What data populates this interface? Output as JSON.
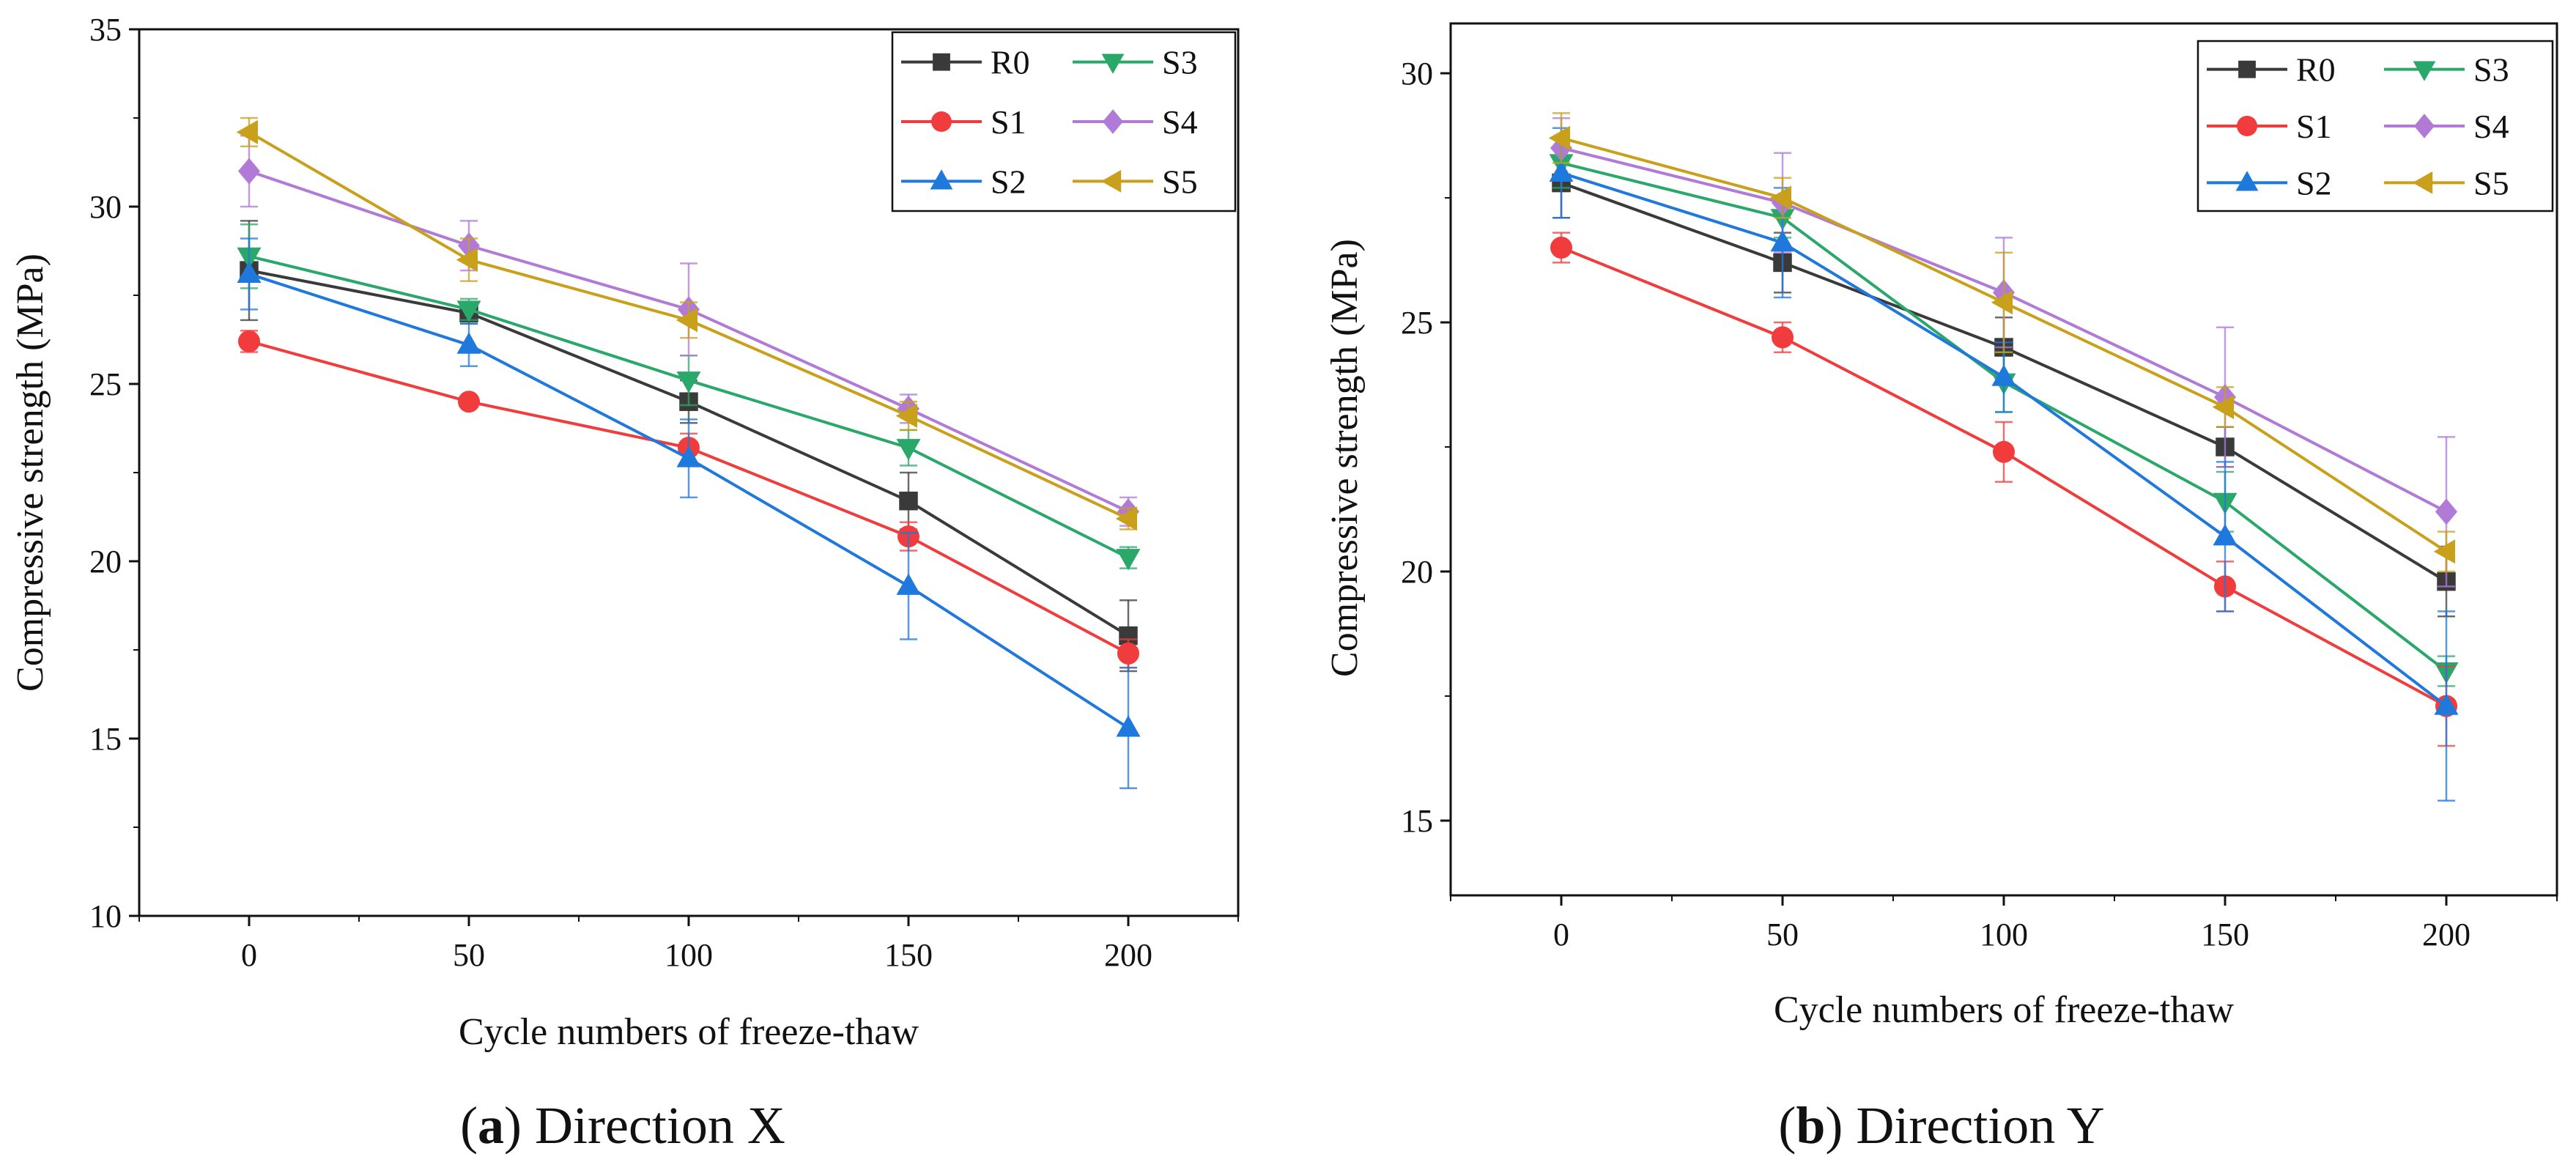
{
  "colors": {
    "R0": "#3a3a3a",
    "S1": "#f03c3c",
    "S2": "#1f78dc",
    "S3": "#2aa86a",
    "S4": "#b07ad6",
    "S5": "#c9a01c"
  },
  "chart_data": [
    {
      "type": "line",
      "panel": "a",
      "caption_letter": "a",
      "caption_text": "Direction X",
      "xlabel": "Cycle numbers of freeze-thaw",
      "ylabel": "Compressive strength (MPa)",
      "x": [
        0,
        50,
        100,
        150,
        200
      ],
      "x_ticks": [
        "0",
        "50",
        "100",
        "150",
        "200"
      ],
      "xlim": [
        -25,
        225
      ],
      "ylim": [
        10,
        35
      ],
      "y_ticks": [
        "10",
        "15",
        "20",
        "25",
        "30",
        "35"
      ],
      "legend_position": "top-right",
      "series": [
        {
          "name": "R0",
          "marker": "square",
          "values": [
            28.2,
            27.0,
            24.5,
            21.7,
            17.9
          ],
          "errors": [
            1.4,
            0.3,
            0.6,
            0.8,
            1.0
          ]
        },
        {
          "name": "S3",
          "marker": "triangle-down",
          "values": [
            28.6,
            27.1,
            25.1,
            23.2,
            20.1
          ],
          "errors": [
            0.9,
            0.3,
            0.7,
            0.5,
            0.3
          ]
        },
        {
          "name": "S1",
          "marker": "circle",
          "values": [
            26.2,
            24.5,
            23.2,
            20.7,
            17.4
          ],
          "errors": [
            0.3,
            0.1,
            0.4,
            0.4,
            0.4
          ]
        },
        {
          "name": "S4",
          "marker": "diamond",
          "values": [
            31.0,
            28.9,
            27.1,
            24.3,
            21.4
          ],
          "errors": [
            1.0,
            0.7,
            1.3,
            0.4,
            0.4
          ]
        },
        {
          "name": "S2",
          "marker": "triangle-up",
          "values": [
            28.1,
            26.1,
            22.9,
            19.3,
            15.3
          ],
          "errors": [
            1.0,
            0.6,
            1.1,
            1.5,
            1.7
          ]
        },
        {
          "name": "S5",
          "marker": "triangle-left",
          "values": [
            32.1,
            28.5,
            26.8,
            24.1,
            21.2
          ],
          "errors": [
            0.4,
            0.6,
            0.5,
            0.4,
            0.3
          ]
        }
      ]
    },
    {
      "type": "line",
      "panel": "b",
      "caption_letter": "b",
      "caption_text": "Direction Y",
      "xlabel": "Cycle numbers of freeze-thaw",
      "ylabel": "Compressive strength (MPa)",
      "x": [
        0,
        50,
        100,
        150,
        200
      ],
      "x_ticks": [
        "0",
        "50",
        "100",
        "150",
        "200"
      ],
      "xlim": [
        -25,
        225
      ],
      "ylim": [
        13.5,
        31
      ],
      "y_ticks": [
        "15",
        "20",
        "25",
        "30"
      ],
      "legend_position": "top-right",
      "series": [
        {
          "name": "R0",
          "marker": "square",
          "values": [
            27.8,
            26.2,
            24.5,
            22.5,
            19.8
          ],
          "errors": [
            0.7,
            0.6,
            0.6,
            0.4,
            0.7
          ]
        },
        {
          "name": "S3",
          "marker": "triangle-down",
          "values": [
            28.2,
            27.1,
            23.8,
            21.4,
            18.0
          ],
          "errors": [
            0.5,
            0.4,
            0.6,
            0.6,
            0.3
          ]
        },
        {
          "name": "S1",
          "marker": "circle",
          "values": [
            26.5,
            24.7,
            22.4,
            19.7,
            17.3
          ],
          "errors": [
            0.3,
            0.3,
            0.6,
            0.5,
            0.8
          ]
        },
        {
          "name": "S4",
          "marker": "diamond",
          "values": [
            28.5,
            27.4,
            25.6,
            23.5,
            21.2
          ],
          "errors": [
            0.6,
            1.0,
            1.1,
            1.4,
            1.5
          ]
        },
        {
          "name": "S2",
          "marker": "triangle-up",
          "values": [
            28.0,
            26.6,
            23.9,
            20.7,
            17.3
          ],
          "errors": [
            0.9,
            1.1,
            0.7,
            1.5,
            1.9
          ]
        },
        {
          "name": "S5",
          "marker": "triangle-left",
          "values": [
            28.7,
            27.5,
            25.4,
            23.3,
            20.4
          ],
          "errors": [
            0.5,
            0.4,
            1.0,
            0.4,
            0.4
          ]
        }
      ]
    }
  ]
}
